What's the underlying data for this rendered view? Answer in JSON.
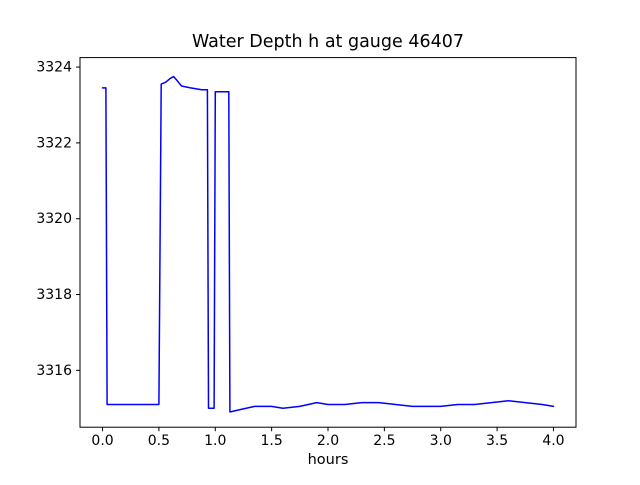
{
  "figure": {
    "title": "Water Depth h at gauge 46407",
    "xlabel": "hours"
  },
  "chart_data": {
    "type": "line",
    "title": "Water Depth h at gauge 46407",
    "xlabel": "hours",
    "ylabel": "",
    "grid": false,
    "legend": null,
    "line_color": "#0000ff",
    "xlim": [
      -0.2,
      4.2
    ],
    "ylim": [
      3314.5,
      3324.25
    ],
    "xticks": [
      0.0,
      0.5,
      1.0,
      1.5,
      2.0,
      2.5,
      3.0,
      3.5,
      4.0
    ],
    "xtick_labels": [
      "0.0",
      "0.5",
      "1.0",
      "1.5",
      "2.0",
      "2.5",
      "3.0",
      "3.5",
      "4.0"
    ],
    "yticks": [
      3316,
      3318,
      3320,
      3322,
      3324
    ],
    "ytick_labels": [
      "3316",
      "3318",
      "3320",
      "3322",
      "3324"
    ],
    "series": [
      {
        "name": "water-depth",
        "color": "#0000ff",
        "x": [
          0.0,
          0.03,
          0.04,
          0.5,
          0.52,
          0.56,
          0.6,
          0.63,
          0.66,
          0.7,
          0.78,
          0.88,
          0.93,
          0.94,
          0.99,
          1.0,
          1.02,
          1.12,
          1.13,
          1.2,
          1.35,
          1.5,
          1.6,
          1.75,
          1.9,
          2.0,
          2.15,
          2.3,
          2.45,
          2.6,
          2.75,
          2.9,
          3.0,
          3.15,
          3.3,
          3.45,
          3.6,
          3.75,
          3.9,
          4.0
        ],
        "y": [
          3323.45,
          3323.45,
          3315.1,
          3315.1,
          3323.55,
          3323.6,
          3323.7,
          3323.75,
          3323.65,
          3323.5,
          3323.45,
          3323.4,
          3323.4,
          3315.0,
          3315.0,
          3323.35,
          3323.35,
          3323.35,
          3314.9,
          3314.95,
          3315.05,
          3315.05,
          3315.0,
          3315.05,
          3315.15,
          3315.1,
          3315.1,
          3315.15,
          3315.15,
          3315.1,
          3315.05,
          3315.05,
          3315.05,
          3315.1,
          3315.1,
          3315.15,
          3315.2,
          3315.15,
          3315.1,
          3315.05
        ]
      }
    ]
  }
}
